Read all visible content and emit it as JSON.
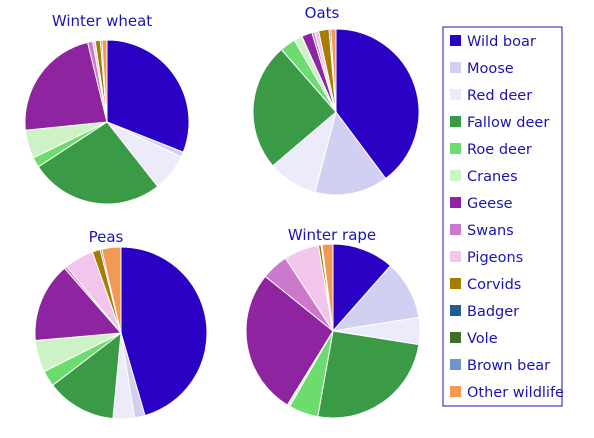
{
  "chart_data": {
    "type": "pie",
    "legend_position": "right",
    "legend_entries": [
      "Wild boar",
      "Moose",
      "Red deer",
      "Fallow deer",
      "Roe deer",
      "Cranes",
      "Geese",
      "Swans",
      "Pigeons",
      "Corvids",
      "Badger",
      "Vole",
      "Brown bear",
      "Other wildlife"
    ],
    "colors": [
      "#2a00c4",
      "#d2d0f2",
      "#ecebfa",
      "#3a9a46",
      "#6cdc6e",
      "#cdf2c6",
      "#8e24a0",
      "#cc78cc",
      "#f2c6ec",
      "#a67c00",
      "#225d8e",
      "#3f6d2a",
      "#6e96cc",
      "#f09a56"
    ],
    "charts": [
      {
        "title": "Winter wheat",
        "values": [
          31.0,
          1.0,
          7.4,
          26.4,
          2.0,
          5.6,
          22.8,
          1.0,
          0.5,
          1.0,
          0.3,
          0.0,
          0.0,
          1.0
        ]
      },
      {
        "title": "Oats",
        "values": [
          39.0,
          14.0,
          9.5,
          24.3,
          3.0,
          1.6,
          2.0,
          0.5,
          0.8,
          2.0,
          0.3,
          0.0,
          0.0,
          1.0
        ]
      },
      {
        "title": "Peas",
        "values": [
          45.5,
          2.0,
          4.0,
          13.1,
          3.0,
          6.0,
          15.0,
          0.5,
          5.5,
          1.5,
          0.3,
          0.0,
          0.0,
          3.6
        ]
      },
      {
        "title": "Winter rape",
        "values": [
          11.5,
          11.0,
          5.0,
          25.3,
          5.5,
          0.5,
          27.0,
          5.0,
          6.5,
          0.5,
          0.2,
          0.0,
          0.0,
          2.0
        ]
      }
    ]
  }
}
